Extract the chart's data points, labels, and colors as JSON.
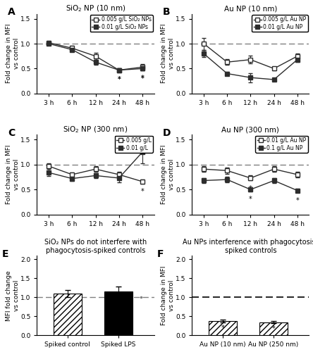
{
  "panel_A": {
    "title": "SiO$_2$ NP (10 nm)",
    "ylabel": "Fold change in MFI\nvs control",
    "xticks": [
      "3 h",
      "6 h",
      "12 h",
      "24 h",
      "48 h"
    ],
    "ylim": [
      0.0,
      1.6
    ],
    "yticks": [
      0.0,
      0.5,
      1.0,
      1.5
    ],
    "series": [
      {
        "label": "0.005 g/L SiO₂ NPs",
        "values": [
          1.02,
          0.91,
          0.75,
          0.47,
          0.53
        ],
        "errors": [
          0.04,
          0.05,
          0.07,
          0.03,
          0.06
        ],
        "filled": false,
        "stars": [
          false,
          false,
          false,
          true,
          true
        ]
      },
      {
        "label": "0.01 g/L SiO₂ NPs",
        "values": [
          1.0,
          0.88,
          0.63,
          0.47,
          0.5
        ],
        "errors": [
          0.03,
          0.04,
          0.05,
          0.03,
          0.04
        ],
        "filled": true,
        "stars": [
          false,
          false,
          false,
          true,
          true
        ]
      }
    ]
  },
  "panel_B": {
    "title": "Au NP (10 nm)",
    "ylabel": "Fold change in MFI\nvs control",
    "xticks": [
      "3 h",
      "6 h",
      "12 h",
      "24 h",
      "48 h"
    ],
    "ylim": [
      0.0,
      1.6
    ],
    "yticks": [
      0.0,
      0.5,
      1.0,
      1.5
    ],
    "series": [
      {
        "label": "0.005 g/L Au NP",
        "values": [
          1.0,
          0.63,
          0.68,
          0.5,
          0.75
        ],
        "errors": [
          0.12,
          0.06,
          0.08,
          0.04,
          0.05
        ],
        "filled": false,
        "stars": [
          false,
          false,
          false,
          false,
          false
        ]
      },
      {
        "label": "0.01 g/L Au NP",
        "values": [
          0.8,
          0.4,
          0.32,
          0.28,
          0.68
        ],
        "errors": [
          0.07,
          0.04,
          0.09,
          0.03,
          0.05
        ],
        "filled": true,
        "stars": [
          false,
          false,
          false,
          false,
          false
        ]
      }
    ]
  },
  "panel_C": {
    "title": "SiO$_2$ NP (300 nm)",
    "ylabel": "Fold change in MFI\nvs control",
    "xticks": [
      "3 h",
      "6 h",
      "12 h",
      "24 h",
      "48 h"
    ],
    "ylim": [
      0.0,
      1.6
    ],
    "yticks": [
      0.0,
      0.5,
      1.0,
      1.5
    ],
    "series": [
      {
        "label": "0.005 g/L",
        "values": [
          0.97,
          0.8,
          0.91,
          0.8,
          0.66
        ],
        "errors": [
          0.05,
          0.04,
          0.06,
          0.06,
          0.04
        ],
        "filled": false,
        "stars": [
          false,
          false,
          false,
          false,
          true
        ]
      },
      {
        "label": "0.01 g/L",
        "values": [
          0.84,
          0.72,
          0.78,
          0.73,
          1.25
        ],
        "errors": [
          0.07,
          0.05,
          0.05,
          0.08,
          0.22
        ],
        "filled": true,
        "stars": [
          false,
          false,
          false,
          false,
          false
        ]
      }
    ]
  },
  "panel_D": {
    "title": "Au NP (300 nm)",
    "ylabel": "Fold change in MFI\nvs control",
    "xticks": [
      "3 h",
      "6 h",
      "12 h",
      "24 h",
      "48 h"
    ],
    "ylim": [
      0.0,
      1.6
    ],
    "yticks": [
      0.0,
      0.5,
      1.0,
      1.5
    ],
    "series": [
      {
        "label": "0.01 g/L Au NP",
        "values": [
          0.91,
          0.88,
          0.73,
          0.91,
          0.8
        ],
        "errors": [
          0.06,
          0.06,
          0.05,
          0.06,
          0.06
        ],
        "filled": false,
        "stars": [
          false,
          false,
          true,
          false,
          false
        ]
      },
      {
        "label": "0.1 g/L Au NP",
        "values": [
          0.68,
          0.7,
          0.5,
          0.68,
          0.48
        ],
        "errors": [
          0.05,
          0.06,
          0.04,
          0.05,
          0.04
        ],
        "filled": true,
        "stars": [
          false,
          false,
          true,
          false,
          true
        ]
      }
    ]
  },
  "panel_E": {
    "title": "SiO₂ NPs do not interfere with\nphagocytosis-spiked controls",
    "ylabel": "MFI fold change\nvs control",
    "categories": [
      "Spiked control",
      "Spiked LPS"
    ],
    "values": [
      1.1,
      1.15
    ],
    "errors": [
      0.1,
      0.13
    ],
    "colors": [
      "white",
      "black"
    ],
    "hatch": [
      "////",
      "////"
    ],
    "dot_annotation": true,
    "ylim": [
      0.0,
      2.1
    ],
    "yticks": [
      0.0,
      0.5,
      1.0,
      1.5,
      2.0
    ]
  },
  "panel_F": {
    "title": "Au NPs interference with phagocytosis-\nspiked controls",
    "ylabel": "Fold change in MFI\nvs control",
    "categories": [
      "Au NP (10 nm)",
      "Au NP (250 nm)"
    ],
    "values": [
      0.38,
      0.35
    ],
    "errors": [
      0.03,
      0.02
    ],
    "colors": [
      "white",
      "white"
    ],
    "hatch": [
      "////",
      "////"
    ],
    "star": [
      true,
      true
    ],
    "ylim": [
      0.0,
      2.1
    ],
    "yticks": [
      0.0,
      0.5,
      1.0,
      1.5,
      2.0
    ]
  },
  "line_color": "#2d2d2d",
  "marker_size": 5,
  "dashes_style": [
    6,
    3
  ]
}
